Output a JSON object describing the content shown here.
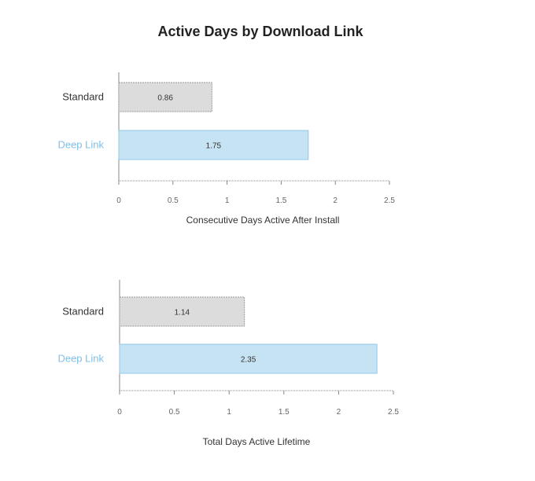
{
  "title": "Active Days by Download Link",
  "colors": {
    "standard_fill": "#dcdcdc",
    "standard_stroke": "#9a9a9a",
    "standard_label": "#333333",
    "deeplink_fill": "#c6e3f4",
    "deeplink_stroke": "#8ec8ea",
    "deeplink_label": "#7ec0e6"
  },
  "chart_data": [
    {
      "type": "bar",
      "orientation": "horizontal",
      "categories": [
        "Standard",
        "Deep Link"
      ],
      "values": [
        0.86,
        1.75
      ],
      "value_labels": [
        "0.86",
        "1.75"
      ],
      "xlabel": "Consecutive Days Active After Install",
      "ylabel": "",
      "xlim": [
        0,
        2.5
      ],
      "ticks": [
        "0",
        "0.5",
        "1",
        "1.5",
        "2",
        "2.5"
      ],
      "grid": false
    },
    {
      "type": "bar",
      "orientation": "horizontal",
      "categories": [
        "Standard",
        "Deep Link"
      ],
      "values": [
        1.14,
        2.35
      ],
      "value_labels": [
        "1.14",
        "2.35"
      ],
      "xlabel": "Total Days Active Lifetime",
      "ylabel": "",
      "xlim": [
        0,
        2.5
      ],
      "ticks": [
        "0",
        "0.5",
        "1",
        "1.5",
        "2",
        "2.5"
      ],
      "grid": false
    }
  ]
}
